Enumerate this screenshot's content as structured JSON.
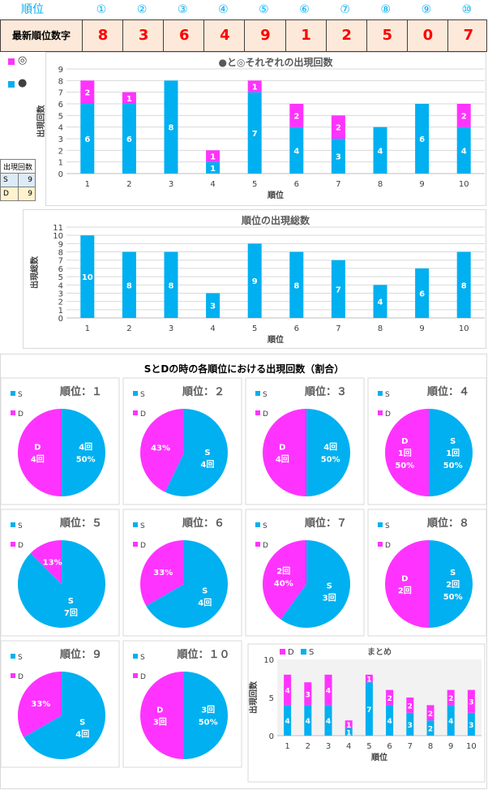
{
  "header": {
    "rank_label": "順位",
    "positions": [
      "①",
      "②",
      "③",
      "④",
      "⑤",
      "⑥",
      "⑦",
      "⑧",
      "⑨",
      "⑩"
    ],
    "latest_label": "最新順位数字",
    "latest_digits": [
      "8",
      "3",
      "6",
      "4",
      "9",
      "1",
      "2",
      "5",
      "0",
      "7"
    ]
  },
  "side_legend": {
    "circle_double": "◎",
    "circle_black": "●"
  },
  "sd_table": {
    "header": "出現回数",
    "rows": [
      {
        "key": "S",
        "value": "9"
      },
      {
        "key": "D",
        "value": "9"
      }
    ]
  },
  "colors": {
    "cyan": "#00b0f0",
    "magenta": "#ff33ff",
    "header_blue": "#00aeef",
    "latest_bg": "#fde9d9",
    "latest_text": "#ff0000"
  },
  "pie_section_title": "SとDの時の各順位における出現回数（割合）",
  "chart_data": [
    {
      "type": "bar",
      "stacked": true,
      "title": "●と◎それぞれの出現回数",
      "xlabel": "順位",
      "ylabel": "出現回数",
      "categories": [
        "1",
        "2",
        "3",
        "4",
        "5",
        "6",
        "7",
        "8",
        "9",
        "10"
      ],
      "ylim": [
        0,
        9
      ],
      "yticks": [
        0,
        1,
        2,
        3,
        4,
        5,
        6,
        7,
        8,
        9
      ],
      "grid": true,
      "series": [
        {
          "name": "●",
          "color": "#00b0f0",
          "values": [
            6,
            6,
            8,
            1,
            7,
            4,
            3,
            4,
            6,
            4
          ],
          "labels": [
            "6",
            "6",
            "8",
            "1",
            "7",
            "4",
            "3",
            "4",
            "6",
            "4"
          ]
        },
        {
          "name": "◎",
          "color": "#ff33ff",
          "values": [
            2,
            1,
            0,
            1,
            1,
            2,
            2,
            0,
            0,
            2
          ],
          "labels": [
            "2",
            "1",
            "",
            "1",
            "1",
            "2",
            "2",
            "",
            "",
            "2"
          ]
        }
      ]
    },
    {
      "type": "bar",
      "title": "順位の出現総数",
      "xlabel": "順位",
      "ylabel": "出現総数",
      "categories": [
        "1",
        "2",
        "3",
        "4",
        "5",
        "6",
        "7",
        "8",
        "9",
        "10"
      ],
      "ylim": [
        0,
        11
      ],
      "yticks": [
        0,
        1,
        2,
        3,
        4,
        5,
        6,
        7,
        8,
        9,
        10,
        11
      ],
      "grid": true,
      "series": [
        {
          "color": "#00b0f0",
          "values": [
            10,
            8,
            8,
            3,
            9,
            8,
            7,
            4,
            6,
            8
          ],
          "labels": [
            "10",
            "8",
            "8",
            "3",
            "9",
            "8",
            "7",
            "4",
            "6",
            "8"
          ]
        }
      ]
    },
    {
      "type": "pie",
      "pies": [
        {
          "title": "順位：１",
          "legend": [
            "S",
            "D"
          ],
          "values": [
            4,
            4
          ],
          "labels": {
            "S": [
              "4回",
              "50%"
            ],
            "D": [
              "D",
              "4回"
            ]
          }
        },
        {
          "title": "順位：２",
          "legend": [
            "S",
            "D"
          ],
          "values": [
            4,
            3
          ],
          "labels": {
            "S": [
              "S",
              "4回"
            ],
            "D": [
              "43%"
            ]
          }
        },
        {
          "title": "順位：３",
          "legend": [
            "S",
            "D"
          ],
          "values": [
            4,
            4
          ],
          "labels": {
            "S": [
              "4回",
              "50%"
            ],
            "D": [
              "D",
              "4回"
            ]
          }
        },
        {
          "title": "順位：４",
          "legend": [
            "S",
            "D"
          ],
          "values": [
            1,
            1
          ],
          "labels": {
            "S": [
              "S",
              "1回",
              "50%"
            ],
            "D": [
              "D",
              "1回",
              "50%"
            ]
          }
        },
        {
          "title": "順位：５",
          "legend": [
            "S",
            "D"
          ],
          "values": [
            7,
            1
          ],
          "labels": {
            "S": [
              "S",
              "7回"
            ],
            "D": [
              "13%"
            ]
          }
        },
        {
          "title": "順位：６",
          "legend": [
            "S",
            "D"
          ],
          "values": [
            4,
            2
          ],
          "labels": {
            "S": [
              "S",
              "4回"
            ],
            "D": [
              "33%"
            ]
          }
        },
        {
          "title": "順位：７",
          "legend": [
            "S",
            "D"
          ],
          "values": [
            3,
            2
          ],
          "labels": {
            "S": [
              "S",
              "3回"
            ],
            "D": [
              "2回",
              "40%"
            ]
          }
        },
        {
          "title": "順位：８",
          "legend": [
            "S",
            "D"
          ],
          "values": [
            2,
            2
          ],
          "labels": {
            "S": [
              "S",
              "2回",
              "50%"
            ],
            "D": [
              "D",
              "2回"
            ]
          }
        },
        {
          "title": "順位：９",
          "legend": [
            "S",
            "D"
          ],
          "values": [
            4,
            2
          ],
          "labels": {
            "S": [
              "S",
              "4回"
            ],
            "D": [
              "33%"
            ]
          }
        },
        {
          "title": "順位：１０",
          "legend": [
            "S",
            "D"
          ],
          "values": [
            3,
            3
          ],
          "labels": {
            "S": [
              "3回",
              "50%"
            ],
            "D": [
              "D",
              "3回"
            ]
          }
        }
      ]
    },
    {
      "type": "bar",
      "stacked": true,
      "title": "まとめ",
      "xlabel": "順位",
      "ylabel": "出現回数",
      "categories": [
        "1",
        "2",
        "3",
        "4",
        "5",
        "6",
        "7",
        "8",
        "9",
        "10"
      ],
      "ylim": [
        0,
        10
      ],
      "yticks": [
        0,
        5,
        10
      ],
      "legend": [
        "D",
        "S"
      ],
      "series": [
        {
          "name": "S",
          "color": "#00b0f0",
          "values": [
            4,
            4,
            4,
            1,
            7,
            4,
            3,
            2,
            4,
            3
          ],
          "labels": [
            "4",
            "4",
            "4",
            "1",
            "7",
            "4",
            "3",
            "2",
            "4",
            "3"
          ]
        },
        {
          "name": "D",
          "color": "#ff33ff",
          "values": [
            4,
            3,
            4,
            1,
            1,
            2,
            2,
            2,
            2,
            3
          ],
          "labels": [
            "4",
            "3",
            "4",
            "1",
            "1",
            "2",
            "2",
            "2",
            "2",
            "3"
          ]
        }
      ]
    }
  ]
}
